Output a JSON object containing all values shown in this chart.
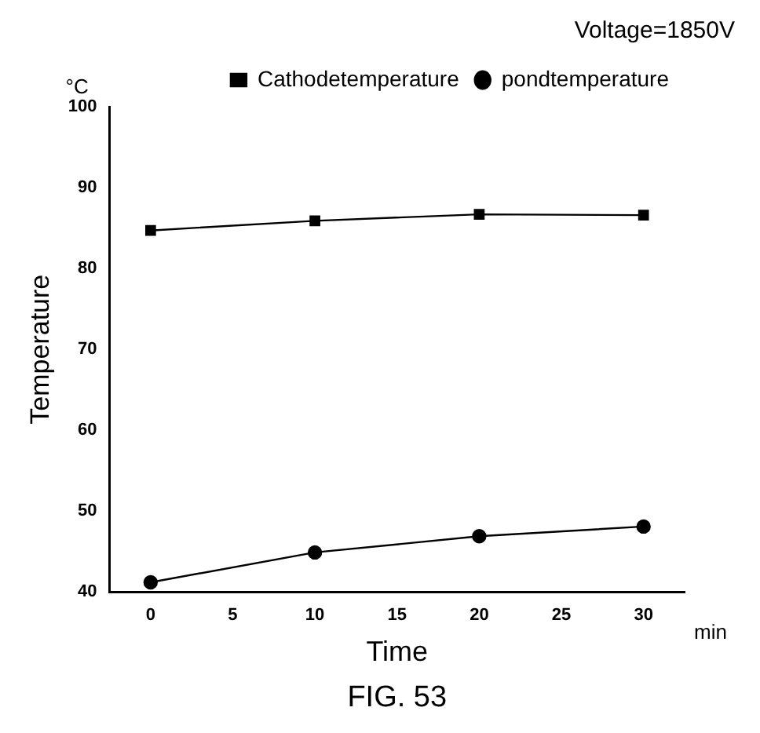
{
  "chart_data": {
    "type": "line",
    "xlabel": "Time",
    "ylabel": "Temperature",
    "x": [
      0,
      10,
      20,
      30
    ],
    "series": [
      {
        "name": "Cathodetemperature",
        "color": "#000000",
        "marker": "square",
        "values": [
          84.7,
          85.9,
          86.7,
          86.6
        ]
      },
      {
        "name": "pondtemperature",
        "color": "#000000",
        "marker": "circle",
        "values": [
          41.2,
          44.9,
          46.9,
          48.1
        ]
      }
    ],
    "xlim": [
      -2.5,
      32.5
    ],
    "xticks": [
      0,
      5,
      10,
      15,
      20,
      25,
      30
    ],
    "ylim": [
      40,
      100
    ],
    "yticks": [
      40,
      50,
      60,
      70,
      80,
      90,
      100
    ],
    "grid": false,
    "legend": "top right",
    "line_style": "solid",
    "annotations": [
      "°C",
      "min",
      "Voltage=1850V",
      "FIG. 53"
    ]
  }
}
